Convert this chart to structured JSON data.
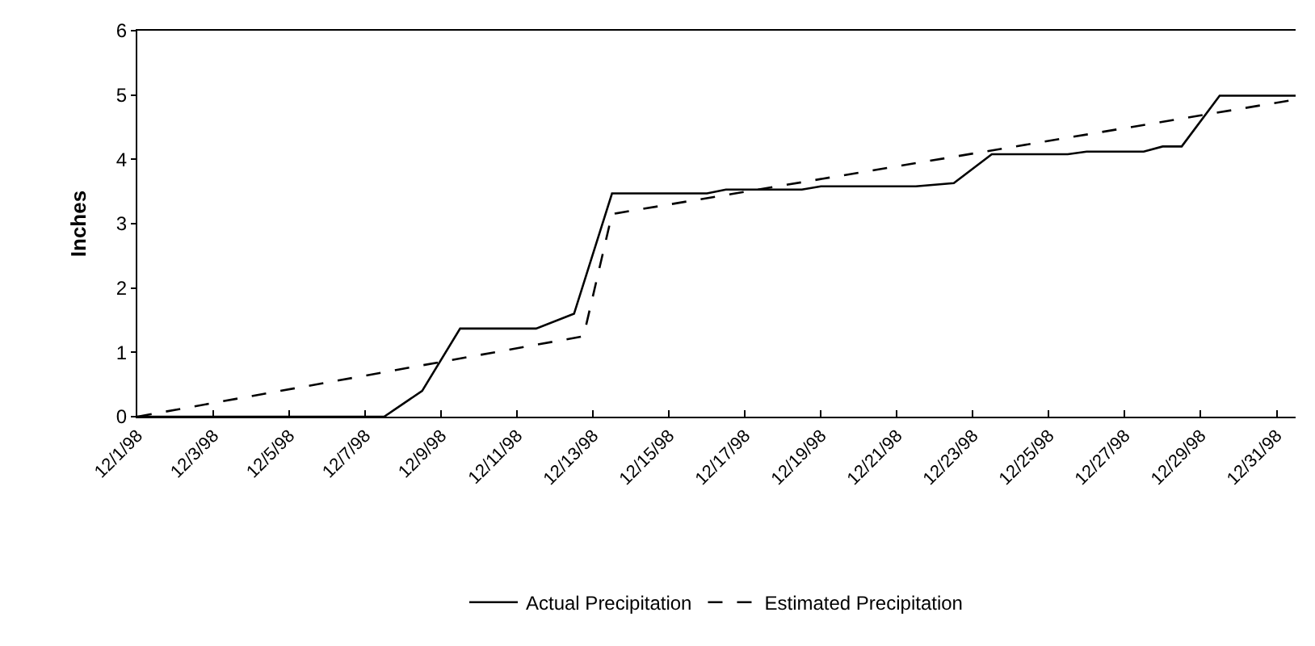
{
  "chart_data": {
    "type": "line",
    "ylabel": "Inches",
    "xlim": [
      "1998-12-01",
      "1998-12-31T12:00"
    ],
    "xticks": [
      {
        "value": "1998-12-01",
        "label": "12/1/98"
      },
      {
        "value": "1998-12-03",
        "label": "12/3/98"
      },
      {
        "value": "1998-12-05",
        "label": "12/5/98"
      },
      {
        "value": "1998-12-07",
        "label": "12/7/98"
      },
      {
        "value": "1998-12-09",
        "label": "12/9/98"
      },
      {
        "value": "1998-12-11",
        "label": "12/11/98"
      },
      {
        "value": "1998-12-13",
        "label": "12/13/98"
      },
      {
        "value": "1998-12-15",
        "label": "12/15/98"
      },
      {
        "value": "1998-12-17",
        "label": "12/17/98"
      },
      {
        "value": "1998-12-19",
        "label": "12/19/98"
      },
      {
        "value": "1998-12-21",
        "label": "12/21/98"
      },
      {
        "value": "1998-12-23",
        "label": "12/23/98"
      },
      {
        "value": "1998-12-25",
        "label": "12/25/98"
      },
      {
        "value": "1998-12-27",
        "label": "12/27/98"
      },
      {
        "value": "1998-12-29",
        "label": "12/29/98"
      },
      {
        "value": "1998-12-31",
        "label": "12/31/98"
      }
    ],
    "ylim": [
      0,
      6
    ],
    "yticks": [
      0,
      1,
      2,
      3,
      4,
      5,
      6
    ],
    "grid": false,
    "legend": "bottom",
    "marker": "none",
    "series": [
      {
        "name": "Actual Precipitation",
        "color": "#000000",
        "line_style": "solid",
        "x": [
          "1998-12-01",
          "1998-12-07T12:00",
          "1998-12-08T12:00",
          "1998-12-09T12:00",
          "1998-12-11T12:00",
          "1998-12-12T12:00",
          "1998-12-13T12:00",
          "1998-12-16",
          "1998-12-16T12:00",
          "1998-12-18T12:00",
          "1998-12-19",
          "1998-12-21T12:00",
          "1998-12-22T12:00",
          "1998-12-23T12:00",
          "1998-12-25T12:00",
          "1998-12-26",
          "1998-12-27T12:00",
          "1998-12-28",
          "1998-12-28T12:00",
          "1998-12-29T12:00",
          "1998-12-31T12:00"
        ],
        "values": [
          0,
          0,
          0.4,
          1.37,
          1.37,
          1.6,
          3.47,
          3.47,
          3.53,
          3.53,
          3.58,
          3.58,
          3.63,
          4.08,
          4.08,
          4.12,
          4.12,
          4.2,
          4.2,
          4.99,
          4.99
        ]
      },
      {
        "name": "Estimated Precipitation",
        "color": "#000000",
        "line_style": "dashed",
        "x": [
          "1998-12-01",
          "1998-12-12T18:00",
          "1998-12-13T12:00",
          "1998-12-31T12:00"
        ],
        "values": [
          0,
          1.25,
          3.15,
          4.93
        ]
      }
    ]
  }
}
